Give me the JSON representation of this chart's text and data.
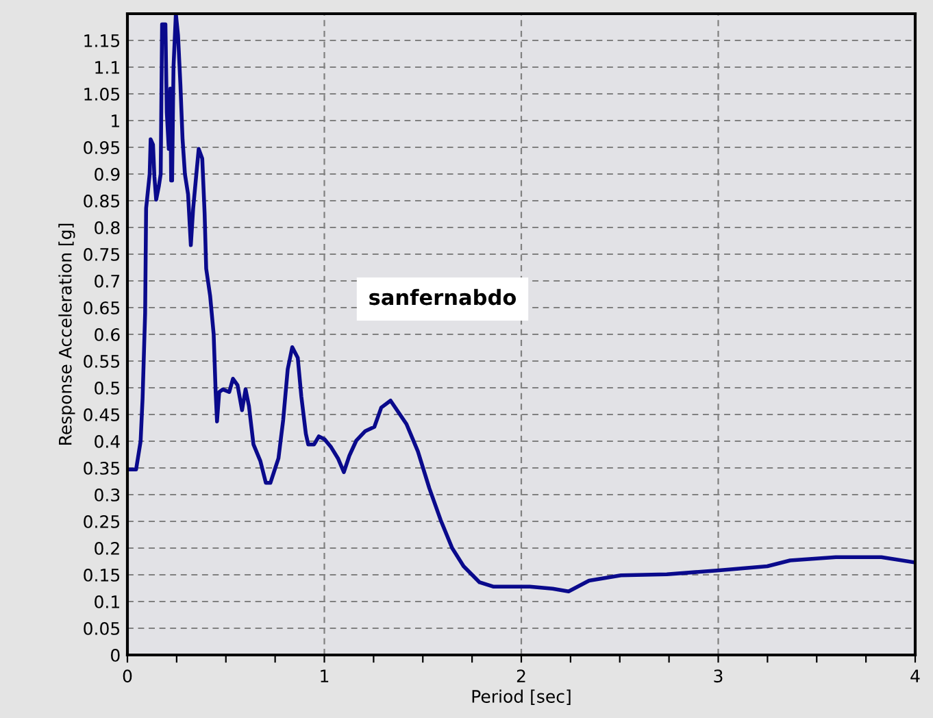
{
  "chart_data": {
    "type": "line",
    "xlabel": "Period [sec]",
    "ylabel": "Response Acceleration [g]",
    "annotations": [
      "sanfernabdo"
    ],
    "x": [
      0,
      0.044,
      0.067,
      0.077,
      0.09,
      0.095,
      0.113,
      0.118,
      0.13,
      0.137,
      0.146,
      0.16,
      0.169,
      0.176,
      0.193,
      0.2,
      0.21,
      0.218,
      0.222,
      0.227,
      0.234,
      0.246,
      0.257,
      0.269,
      0.28,
      0.292,
      0.308,
      0.322,
      0.334,
      0.35,
      0.362,
      0.38,
      0.392,
      0.4,
      0.42,
      0.438,
      0.448,
      0.455,
      0.466,
      0.485,
      0.517,
      0.536,
      0.559,
      0.582,
      0.6,
      0.617,
      0.64,
      0.675,
      0.703,
      0.726,
      0.767,
      0.791,
      0.814,
      0.837,
      0.865,
      0.883,
      0.906,
      0.918,
      0.948,
      0.972,
      1.0,
      1.034,
      1.069,
      1.099,
      1.127,
      1.162,
      1.208,
      1.254,
      1.289,
      1.336,
      1.417,
      1.475,
      1.533,
      1.591,
      1.649,
      1.707,
      1.788,
      1.857,
      2.043,
      2.159,
      2.24,
      2.344,
      2.506,
      2.739,
      2.993,
      3.249,
      3.365,
      3.597,
      3.828,
      4.0
    ],
    "series": [
      {
        "color": "#0a0a8c",
        "values": [
          0.347,
          0.347,
          0.4,
          0.48,
          0.64,
          0.836,
          0.9,
          0.965,
          0.955,
          0.895,
          0.852,
          0.878,
          0.9,
          1.18,
          1.18,
          1.015,
          0.947,
          1.06,
          0.888,
          0.888,
          1.1,
          1.2,
          1.16,
          1.068,
          0.965,
          0.9,
          0.862,
          0.767,
          0.836,
          0.9,
          0.947,
          0.929,
          0.826,
          0.723,
          0.672,
          0.6,
          0.492,
          0.437,
          0.492,
          0.497,
          0.492,
          0.517,
          0.505,
          0.458,
          0.497,
          0.466,
          0.394,
          0.363,
          0.322,
          0.322,
          0.368,
          0.44,
          0.535,
          0.576,
          0.556,
          0.484,
          0.414,
          0.394,
          0.394,
          0.409,
          0.404,
          0.389,
          0.368,
          0.342,
          0.373,
          0.401,
          0.419,
          0.427,
          0.463,
          0.476,
          0.432,
          0.381,
          0.312,
          0.252,
          0.2,
          0.166,
          0.136,
          0.128,
          0.128,
          0.124,
          0.119,
          0.139,
          0.149,
          0.151,
          0.158,
          0.166,
          0.177,
          0.183,
          0.183,
          0.173
        ]
      }
    ],
    "xlim": [
      0,
      4
    ],
    "xticks": [
      0,
      {
        "value": 0.25,
        "label": null
      },
      {
        "value": 0.5,
        "label": null
      },
      {
        "value": 0.75,
        "label": null
      },
      1,
      {
        "value": 1.25,
        "label": null
      },
      {
        "value": 1.5,
        "label": null
      },
      {
        "value": 1.75,
        "label": null
      },
      2,
      {
        "value": 2.25,
        "label": null
      },
      {
        "value": 2.5,
        "label": null
      },
      {
        "value": 2.75,
        "label": null
      },
      3,
      {
        "value": 3.25,
        "label": null
      },
      {
        "value": 3.5,
        "label": null
      },
      {
        "value": 3.75,
        "label": null
      },
      4
    ],
    "ylim": [
      0,
      1.2
    ],
    "yticks": [
      0,
      0.05,
      0.1,
      0.15,
      0.2,
      0.25,
      0.3,
      0.35,
      0.4,
      0.45,
      0.5,
      0.55,
      0.6,
      0.65,
      0.7,
      0.75,
      0.8,
      0.85,
      0.9,
      0.95,
      1,
      1.05,
      1.1,
      1.15
    ],
    "grid": true,
    "marker": "none",
    "line_style": "solid"
  }
}
